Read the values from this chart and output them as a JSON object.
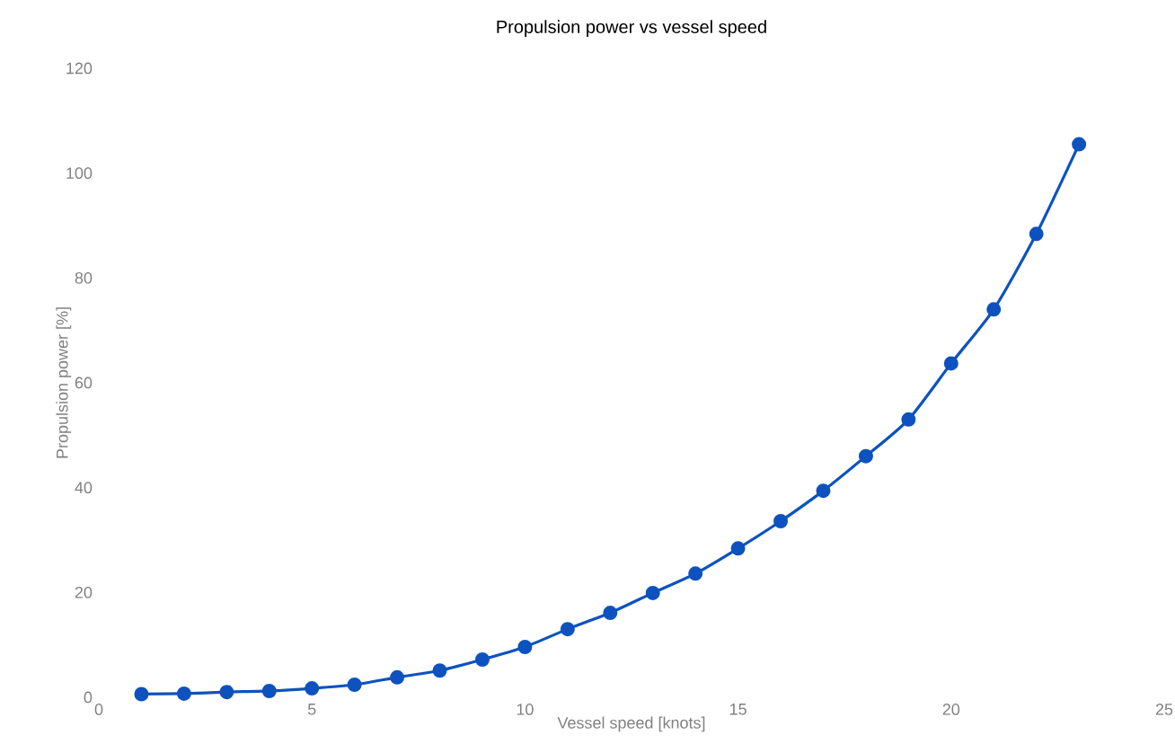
{
  "chart_data": {
    "type": "line",
    "title": "Propulsion power vs vessel speed",
    "xlabel": "Vessel speed [knots]",
    "ylabel": "Propulsion power [%]",
    "x": [
      1,
      2,
      3,
      4,
      5,
      6,
      7,
      8,
      9,
      10,
      11,
      12,
      13,
      14,
      15,
      16,
      17,
      18,
      19,
      20,
      21,
      22,
      23
    ],
    "series": [
      {
        "color": "#0d52bf",
        "values": [
          0.6,
          0.7,
          1.0,
          1.2,
          1.7,
          2.4,
          3.8,
          5.1,
          7.2,
          9.6,
          13,
          16.1,
          19.9,
          23.6,
          28.4,
          33.6,
          39.4,
          46,
          53,
          63.7,
          74,
          88.4,
          105.5
        ]
      }
    ],
    "xlim": [
      0,
      25
    ],
    "ylim": [
      0,
      120
    ],
    "xticks": [
      0,
      5,
      10,
      15,
      20,
      25
    ],
    "yticks": [
      0,
      20,
      40,
      60,
      80,
      100,
      120
    ],
    "marker": "circle",
    "line_style": "solid",
    "grid": false
  }
}
